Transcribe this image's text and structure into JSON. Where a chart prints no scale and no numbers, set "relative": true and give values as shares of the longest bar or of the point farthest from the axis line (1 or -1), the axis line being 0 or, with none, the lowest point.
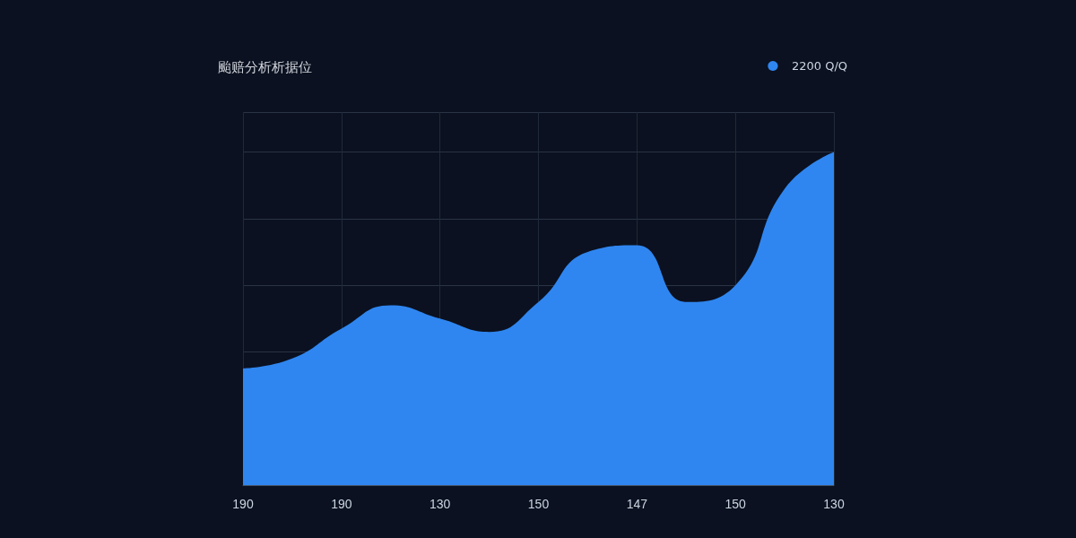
{
  "chart_data": {
    "type": "area",
    "title": "颱赔分析析据位",
    "relative": true,
    "categories": [
      "190",
      null,
      "190",
      null,
      "130",
      null,
      "150",
      null,
      "147",
      null,
      "150",
      null,
      "130"
    ],
    "series": [
      {
        "name": "2200 Q/Q",
        "color": "#2f86f0",
        "values": [
          0.35,
          0.38,
          0.47,
          0.54,
          0.5,
          0.46,
          0.55,
          0.7,
          0.72,
          0.55,
          0.6,
          0.89,
          1
        ]
      }
    ],
    "grid": true,
    "legend": "top right"
  }
}
